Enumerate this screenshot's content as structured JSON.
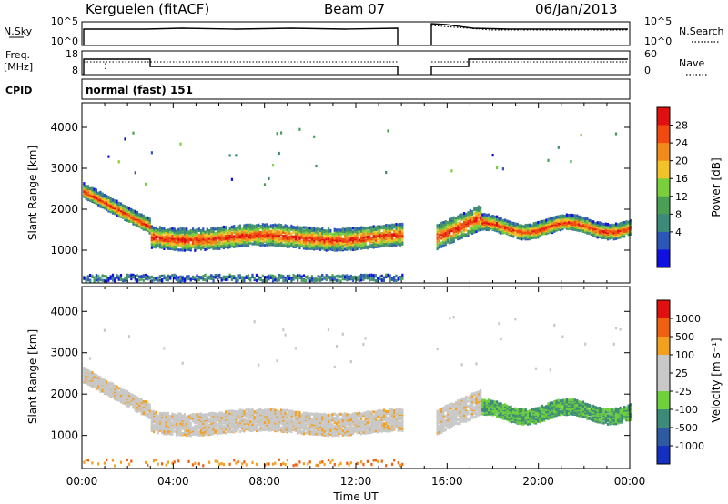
{
  "header": {
    "station": "Kerguelen (fitACF)",
    "beam": "Beam 07",
    "date": "06/Jan/2013"
  },
  "labels": {
    "nsky": "N.Sky",
    "nsearch": "N.Search",
    "freq_line1": "Freq.",
    "freq_line2": "[MHz]",
    "nave": "Nave",
    "cpid": "CPID",
    "mode": "normal (fast) 151"
  },
  "colors": {
    "power_scale": [
      "#1010e0",
      "#2c56b8",
      "#3d8a78",
      "#4a9f55",
      "#7ccf3c",
      "#f2c22a",
      "#f08a1a",
      "#f04a10",
      "#e01010"
    ],
    "velocity_scale": [
      "#1530c0",
      "#2d5aa0",
      "#3d8a78",
      "#6fcf3c",
      "#c8c8c8",
      "#c8c8c8",
      "#f2a020",
      "#f06010",
      "#e01010"
    ]
  },
  "chart_data": [
    {
      "type": "line",
      "name": "noise-panel",
      "left_ticks": [
        "10^5",
        "10^0"
      ],
      "right_ticks": [
        "10^5",
        "10^0"
      ],
      "gap": [
        "14:00",
        "15:30"
      ]
    },
    {
      "type": "line",
      "name": "frequency-panel",
      "left_ticks": [
        "18",
        "8"
      ],
      "right_ticks": [
        "60",
        "0"
      ],
      "gap": [
        "14:00",
        "15:30"
      ]
    },
    {
      "type": "heatmap",
      "name": "power",
      "ylabel": "Slant Range [km]",
      "y_ticks": [
        1000,
        2000,
        3000,
        4000
      ],
      "ylim": [
        200,
        4600
      ],
      "x_ticks": [
        "00:00",
        "04:00",
        "08:00",
        "12:00",
        "16:00",
        "20:00",
        "00:00"
      ],
      "xlim_hours": [
        0,
        24
      ],
      "colorbar": {
        "label": "Power [dB]",
        "ticks": [
          "28",
          "24",
          "20",
          "16",
          "12",
          "8",
          "4"
        ]
      }
    },
    {
      "type": "heatmap",
      "name": "velocity",
      "ylabel": "Slant Range [km]",
      "y_ticks": [
        1000,
        2000,
        3000,
        4000
      ],
      "ylim": [
        200,
        4600
      ],
      "x_ticks": [
        "00:00",
        "04:00",
        "08:00",
        "12:00",
        "16:00",
        "20:00",
        "00:00"
      ],
      "xlim_hours": [
        0,
        24
      ],
      "xlabel": "Time UT",
      "colorbar": {
        "label": "Velocity [m s⁻¹]",
        "ticks": [
          "1000",
          "500",
          "100",
          "25",
          "-25",
          "-100",
          "-500",
          "-1000"
        ]
      }
    }
  ]
}
